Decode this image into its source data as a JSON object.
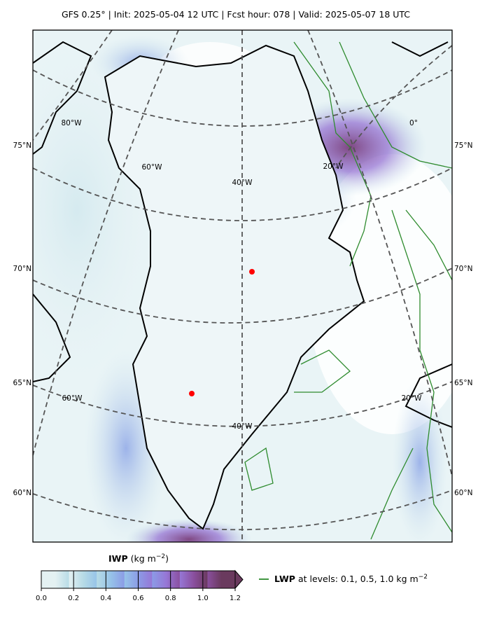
{
  "header": {
    "title": "GFS 0.25°  |  Init: 2025-05-04 12 UTC  |  Fcst hour: 078  |  Valid: 2025-05-07 18 UTC"
  },
  "map": {
    "lat_labels_left": [
      "75°N",
      "70°N",
      "65°N",
      "60°N"
    ],
    "lat_labels_right": [
      "75°N",
      "70°N",
      "65°N",
      "60°N"
    ],
    "inline_labels": [
      "80°W",
      "0°",
      "60°W",
      "20°W",
      "40°W",
      "60°W",
      "20°W",
      "40°W"
    ]
  },
  "colorbar": {
    "name": "IWP",
    "unit_before": "(kg m",
    "unit_exp": "−2",
    "unit_after": ")",
    "range": [
      0,
      1.2
    ],
    "ticks": [
      {
        "value": 0,
        "label": "0.0"
      },
      0.2,
      0.4,
      0.6,
      0.8,
      {
        "value": 1,
        "label": "1.0"
      },
      1.2
    ],
    "colors": [
      "#e4f1f2",
      "#b7dbe6",
      "#96c3e8",
      "#8b9be6",
      "#9677d6",
      "#8a4f9e",
      "#6a3a5e"
    ]
  },
  "legend": {
    "name": "LWP",
    "text": "at levels: 0.1, 0.5, 1.0  kg m",
    "exp": "−2",
    "color": "#2e8b2e"
  }
}
